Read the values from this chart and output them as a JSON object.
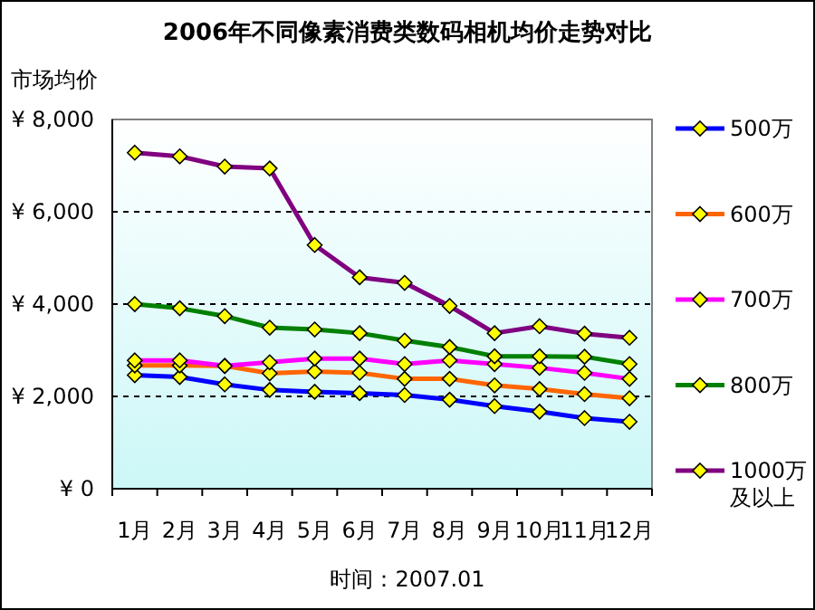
{
  "chart_data": {
    "type": "line",
    "title": "2006年不同像素消费类数码相机均价走势对比",
    "ylabel": "市场均价",
    "categories": [
      "1月",
      "2月",
      "3月",
      "4月",
      "5月",
      "6月",
      "7月",
      "8月",
      "9月",
      "10月",
      "11月",
      "12月"
    ],
    "ylim": [
      0,
      8000
    ],
    "yticks": [
      {
        "value": 0,
        "label": "¥ 0"
      },
      {
        "value": 2000,
        "label": "¥ 2,000"
      },
      {
        "value": 4000,
        "label": "¥ 4,000"
      },
      {
        "value": 6000,
        "label": "¥ 6,000"
      },
      {
        "value": 8000,
        "label": "¥ 8,000"
      }
    ],
    "grid": "y",
    "legend": "right",
    "marker": "diamond",
    "line_style": "solid",
    "annotations": [
      "时间：2007.01"
    ],
    "series": [
      {
        "name": "500万",
        "color": "#0000ff",
        "values": [
          2460,
          2420,
          2260,
          2140,
          2100,
          2070,
          2030,
          1930,
          1790,
          1670,
          1530,
          1450
        ]
      },
      {
        "name": "600万",
        "color": "#ff6600",
        "values": [
          2670,
          2670,
          2660,
          2500,
          2540,
          2510,
          2380,
          2380,
          2240,
          2160,
          2050,
          1960
        ]
      },
      {
        "name": "700万",
        "color": "#ff00ff",
        "values": [
          2780,
          2780,
          2660,
          2740,
          2820,
          2820,
          2700,
          2780,
          2700,
          2620,
          2510,
          2380
        ]
      },
      {
        "name": "800万",
        "color": "#008000",
        "values": [
          4000,
          3910,
          3740,
          3490,
          3450,
          3370,
          3210,
          3070,
          2870,
          2870,
          2860,
          2700
        ]
      },
      {
        "name": "1000万及以上",
        "color": "#800080",
        "values": [
          7280,
          7200,
          6980,
          6940,
          5280,
          4580,
          4460,
          3960,
          3370,
          3520,
          3360,
          3270
        ]
      }
    ]
  }
}
